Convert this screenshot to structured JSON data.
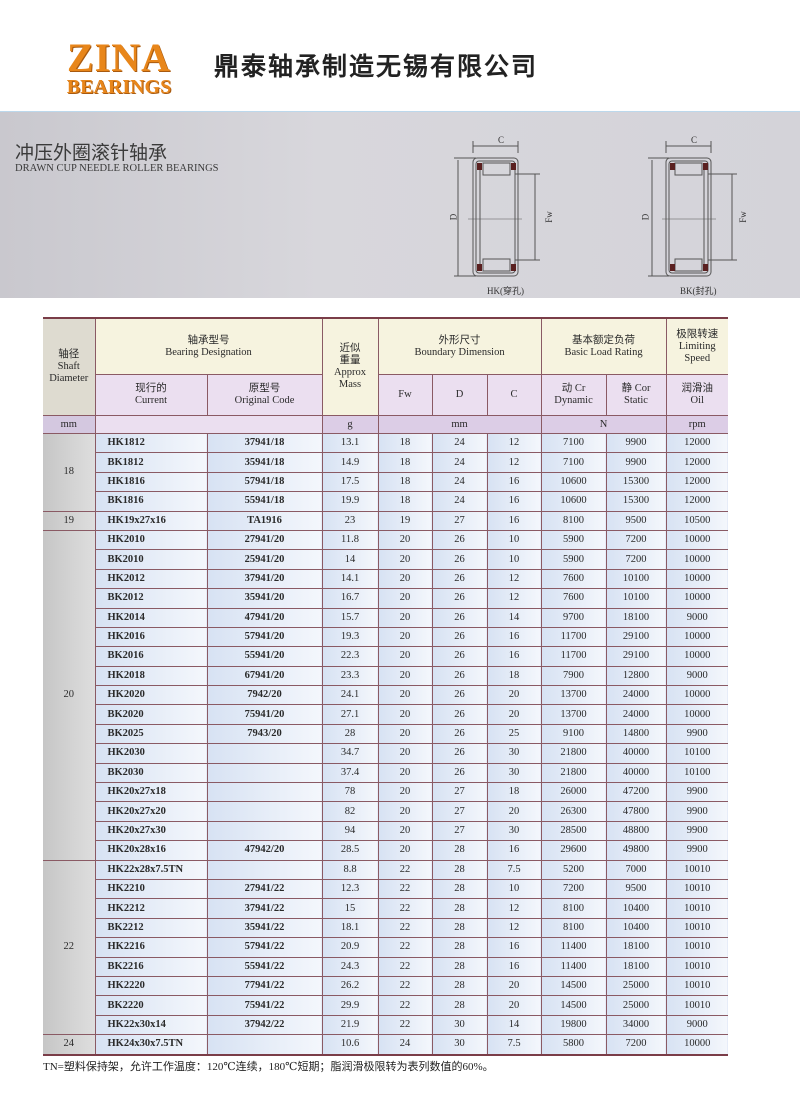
{
  "header": {
    "logo_line1": "ZINA",
    "logo_line2": "BEARINGS",
    "company_name": "鼎泰轴承制造无锡有限公司"
  },
  "section": {
    "title_cn": "冲压外圈滚针轴承",
    "title_en": "DRAWN CUP NEEDLE ROLLER BEARINGS",
    "diagrams": [
      {
        "caption": "HK(穿孔)",
        "dim_c": "C",
        "dim_d": "D",
        "dim_fw": "Fw"
      },
      {
        "caption": "BK(封孔)",
        "dim_c": "C",
        "dim_d": "D",
        "dim_fw": "Fw"
      }
    ]
  },
  "table": {
    "headers": {
      "shaft_cn": "轴径",
      "shaft_en1": "Shaft",
      "shaft_en2": "Diameter",
      "designation_cn": "轴承型号",
      "designation_en": "Bearing Designation",
      "mass_cn1": "近似",
      "mass_cn2": "重量",
      "mass_en1": "Approx",
      "mass_en2": "Mass",
      "boundary_cn": "外形尺寸",
      "boundary_en": "Boundary Dimension",
      "load_cn": "基本额定负荷",
      "load_en": "Basic Load Rating",
      "speed_cn": "极限转速",
      "speed_en1": "Limiting",
      "speed_en2": "Speed",
      "current_cn": "现行的",
      "current_en": "Current",
      "original_cn": "原型号",
      "original_en": "Original Code",
      "fw": "Fw",
      "d": "D",
      "c": "C",
      "dynamic_cn": "动 Cr",
      "dynamic_en": "Dynamic",
      "static_cn": "静 Cor",
      "static_en": "Static",
      "oil_cn": "润滑油",
      "oil_en": "Oil",
      "unit_mm": "mm",
      "unit_g": "g",
      "unit_mm2": "mm",
      "unit_n": "N",
      "unit_rpm": "rpm"
    },
    "groups": [
      {
        "shaft": "18",
        "rows": [
          [
            "HK1812",
            "37941/18",
            "13.1",
            "18",
            "24",
            "12",
            "7100",
            "9900",
            "12000"
          ],
          [
            "BK1812",
            "35941/18",
            "14.9",
            "18",
            "24",
            "12",
            "7100",
            "9900",
            "12000"
          ],
          [
            "HK1816",
            "57941/18",
            "17.5",
            "18",
            "24",
            "16",
            "10600",
            "15300",
            "12000"
          ],
          [
            "BK1816",
            "55941/18",
            "19.9",
            "18",
            "24",
            "16",
            "10600",
            "15300",
            "12000"
          ]
        ]
      },
      {
        "shaft": "19",
        "rows": [
          [
            "HK19x27x16",
            "TA1916",
            "23",
            "19",
            "27",
            "16",
            "8100",
            "9500",
            "10500"
          ]
        ]
      },
      {
        "shaft": "20",
        "rows": [
          [
            "HK2010",
            "27941/20",
            "11.8",
            "20",
            "26",
            "10",
            "5900",
            "7200",
            "10000"
          ],
          [
            "BK2010",
            "25941/20",
            "14",
            "20",
            "26",
            "10",
            "5900",
            "7200",
            "10000"
          ],
          [
            "HK2012",
            "37941/20",
            "14.1",
            "20",
            "26",
            "12",
            "7600",
            "10100",
            "10000"
          ],
          [
            "BK2012",
            "35941/20",
            "16.7",
            "20",
            "26",
            "12",
            "7600",
            "10100",
            "10000"
          ],
          [
            "HK2014",
            "47941/20",
            "15.7",
            "20",
            "26",
            "14",
            "9700",
            "18100",
            "9000"
          ],
          [
            "HK2016",
            "57941/20",
            "19.3",
            "20",
            "26",
            "16",
            "11700",
            "29100",
            "10000"
          ],
          [
            "BK2016",
            "55941/20",
            "22.3",
            "20",
            "26",
            "16",
            "11700",
            "29100",
            "10000"
          ],
          [
            "HK2018",
            "67941/20",
            "23.3",
            "20",
            "26",
            "18",
            "7900",
            "12800",
            "9000"
          ],
          [
            "HK2020",
            "7942/20",
            "24.1",
            "20",
            "26",
            "20",
            "13700",
            "24000",
            "10000"
          ],
          [
            "BK2020",
            "75941/20",
            "27.1",
            "20",
            "26",
            "20",
            "13700",
            "24000",
            "10000"
          ],
          [
            "BK2025",
            "7943/20",
            "28",
            "20",
            "26",
            "25",
            "9100",
            "14800",
            "9900"
          ],
          [
            "HK2030",
            "",
            "34.7",
            "20",
            "26",
            "30",
            "21800",
            "40000",
            "10100"
          ],
          [
            "BK2030",
            "",
            "37.4",
            "20",
            "26",
            "30",
            "21800",
            "40000",
            "10100"
          ],
          [
            "HK20x27x18",
            "",
            "78",
            "20",
            "27",
            "18",
            "26000",
            "47200",
            "9900"
          ],
          [
            "HK20x27x20",
            "",
            "82",
            "20",
            "27",
            "20",
            "26300",
            "47800",
            "9900"
          ],
          [
            "HK20x27x30",
            "",
            "94",
            "20",
            "27",
            "30",
            "28500",
            "48800",
            "9900"
          ],
          [
            "HK20x28x16",
            "47942/20",
            "28.5",
            "20",
            "28",
            "16",
            "29600",
            "49800",
            "9900"
          ]
        ]
      },
      {
        "shaft": "22",
        "rows": [
          [
            "HK22x28x7.5TN",
            "",
            "8.8",
            "22",
            "28",
            "7.5",
            "5200",
            "7000",
            "10010"
          ],
          [
            "HK2210",
            "27941/22",
            "12.3",
            "22",
            "28",
            "10",
            "7200",
            "9500",
            "10010"
          ],
          [
            "HK2212",
            "37941/22",
            "15",
            "22",
            "28",
            "12",
            "8100",
            "10400",
            "10010"
          ],
          [
            "BK2212",
            "35941/22",
            "18.1",
            "22",
            "28",
            "12",
            "8100",
            "10400",
            "10010"
          ],
          [
            "HK2216",
            "57941/22",
            "20.9",
            "22",
            "28",
            "16",
            "11400",
            "18100",
            "10010"
          ],
          [
            "BK2216",
            "55941/22",
            "24.3",
            "22",
            "28",
            "16",
            "11400",
            "18100",
            "10010"
          ],
          [
            "HK2220",
            "77941/22",
            "26.2",
            "22",
            "28",
            "20",
            "14500",
            "25000",
            "10010"
          ],
          [
            "BK2220",
            "75941/22",
            "29.9",
            "22",
            "28",
            "20",
            "14500",
            "25000",
            "10010"
          ],
          [
            "HK22x30x14",
            "37942/22",
            "21.9",
            "22",
            "30",
            "14",
            "19800",
            "34000",
            "9000"
          ]
        ]
      },
      {
        "shaft": "24",
        "rows": [
          [
            "HK24x30x7.5TN",
            "",
            "10.6",
            "24",
            "30",
            "7.5",
            "5800",
            "7200",
            "10000"
          ]
        ]
      }
    ]
  },
  "footnote": "TN=塑料保持架，允许工作温度：120℃连续，180℃短期；脂润滑极限转为表列数值的60%。",
  "colors": {
    "logo": "#e8861a",
    "table_border": "#7a3d48",
    "header_cream": "#f6f3df",
    "header_lavender": "#ebdff0",
    "row_blue": "#d7e2f3"
  }
}
